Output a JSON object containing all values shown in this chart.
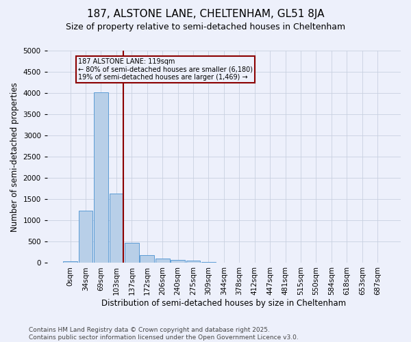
{
  "title": "187, ALSTONE LANE, CHELTENHAM, GL51 8JA",
  "subtitle": "Size of property relative to semi-detached houses in Cheltenham",
  "xlabel": "Distribution of semi-detached houses by size in Cheltenham",
  "ylabel": "Number of semi-detached properties",
  "categories": [
    "0sqm",
    "34sqm",
    "69sqm",
    "103sqm",
    "137sqm",
    "172sqm",
    "206sqm",
    "240sqm",
    "275sqm",
    "309sqm",
    "344sqm",
    "378sqm",
    "412sqm",
    "447sqm",
    "481sqm",
    "515sqm",
    "550sqm",
    "584sqm",
    "618sqm",
    "653sqm",
    "687sqm"
  ],
  "values": [
    40,
    1230,
    4020,
    1630,
    480,
    190,
    110,
    70,
    55,
    30,
    0,
    0,
    0,
    0,
    0,
    0,
    0,
    0,
    0,
    0,
    0
  ],
  "bar_color": "#b8cfe8",
  "bar_edge_color": "#5b9bd5",
  "vline_color": "#8b0000",
  "annotation_title": "187 ALSTONE LANE: 119sqm",
  "annotation_line1": "← 80% of semi-detached houses are smaller (6,180)",
  "annotation_line2": "19% of semi-detached houses are larger (1,469) →",
  "annotation_box_color": "#8b0000",
  "ylim": [
    0,
    5000
  ],
  "yticks": [
    0,
    500,
    1000,
    1500,
    2000,
    2500,
    3000,
    3500,
    4000,
    4500,
    5000
  ],
  "background_color": "#edf0fb",
  "grid_color": "#c8d0e0",
  "title_fontsize": 11,
  "subtitle_fontsize": 9,
  "axis_label_fontsize": 8.5,
  "tick_fontsize": 7.5,
  "footer_fontsize": 6.5
}
